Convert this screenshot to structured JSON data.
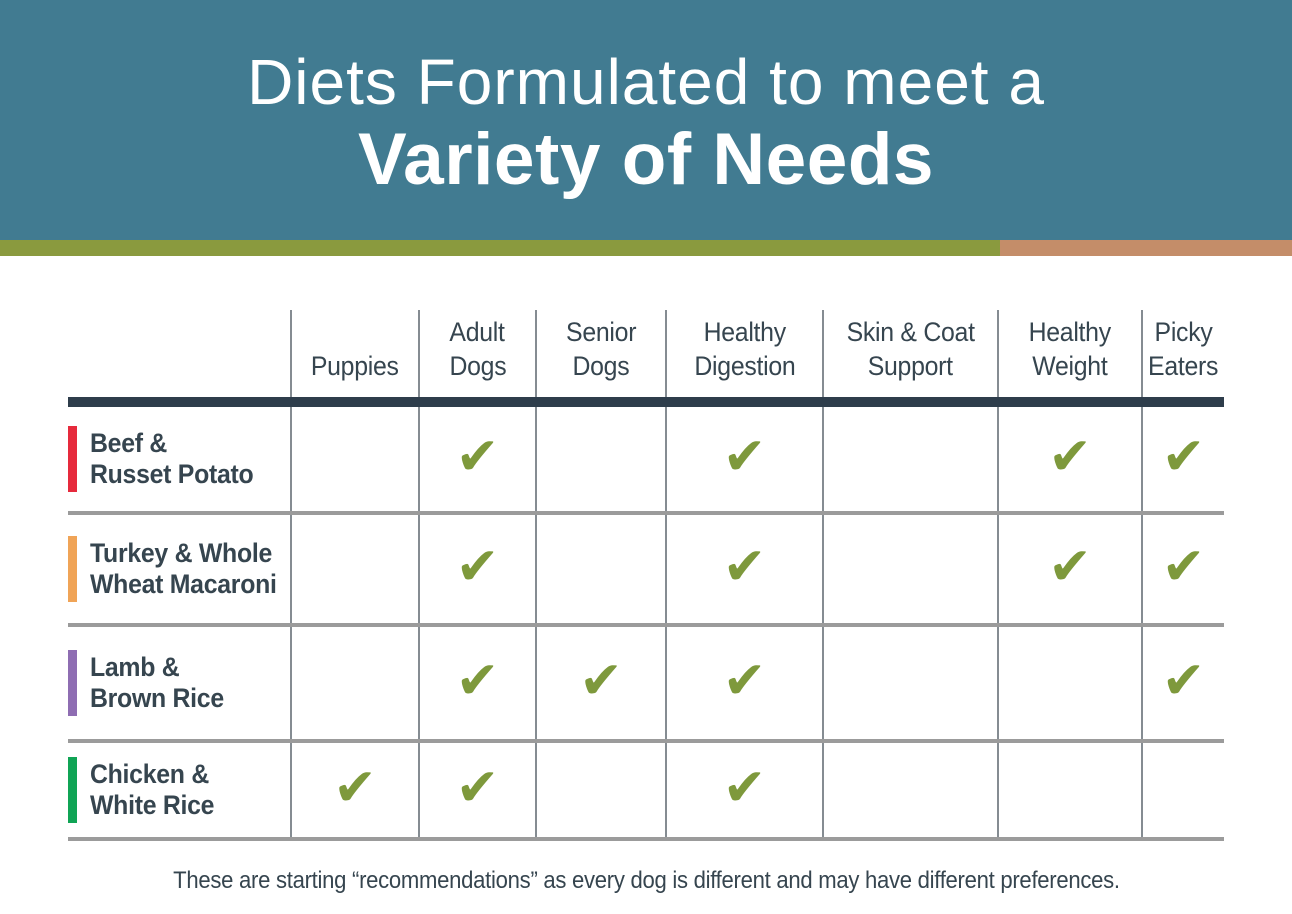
{
  "title": {
    "line1": "Diets Formulated to meet a",
    "line2": "Variety of Needs"
  },
  "colors": {
    "banner": "#417B91",
    "stripe_green": "#8A9A3E",
    "stripe_salmon": "#C48D69",
    "check": "#7E993C",
    "header_text": "#36454F",
    "dark_rule": "#2E3D4B",
    "row_separator": "#9B9B9B",
    "grid_line": "#858C92"
  },
  "icons": {
    "check": "✔"
  },
  "table": {
    "columns": [
      {
        "label": "Puppies",
        "lines": [
          "Puppies"
        ]
      },
      {
        "label": "Adult Dogs",
        "lines": [
          "Adult",
          "Dogs"
        ]
      },
      {
        "label": "Senior Dogs",
        "lines": [
          "Senior",
          "Dogs"
        ]
      },
      {
        "label": "Healthy Digestion",
        "lines": [
          "Healthy",
          "Digestion"
        ]
      },
      {
        "label": "Skin & Coat Support",
        "lines": [
          "Skin & Coat",
          "Support"
        ]
      },
      {
        "label": "Healthy Weight",
        "lines": [
          "Healthy",
          "Weight"
        ]
      },
      {
        "label": "Picky Eaters",
        "lines": [
          "Picky",
          "Eaters"
        ]
      }
    ],
    "rows": [
      {
        "label": "Beef & Russet Potato",
        "lines": [
          "Beef &",
          "Russet Potato"
        ],
        "bar_color": "#E62A3C",
        "checks": [
          false,
          true,
          false,
          true,
          false,
          true,
          true
        ]
      },
      {
        "label": "Turkey & Whole Wheat Macaroni",
        "lines": [
          "Turkey & Whole",
          "Wheat Macaroni"
        ],
        "bar_color": "#F0A457",
        "checks": [
          false,
          true,
          false,
          true,
          false,
          true,
          true
        ]
      },
      {
        "label": "Lamb & Brown Rice",
        "lines": [
          "Lamb &",
          "Brown Rice"
        ],
        "bar_color": "#8E6DB2",
        "checks": [
          false,
          true,
          true,
          true,
          false,
          false,
          true
        ]
      },
      {
        "label": "Chicken & White Rice",
        "lines": [
          "Chicken &",
          "White Rice"
        ],
        "bar_color": "#10A455",
        "checks": [
          true,
          true,
          false,
          true,
          false,
          false,
          false
        ]
      }
    ]
  },
  "footer": {
    "note": "These are starting “recommendations” as every dog is different and may have different preferences."
  },
  "chart_data": {
    "type": "table",
    "title": "Diets Formulated to meet a Variety of Needs",
    "columns": [
      "Puppies",
      "Adult Dogs",
      "Senior Dogs",
      "Healthy Digestion",
      "Skin & Coat Support",
      "Healthy Weight",
      "Picky Eaters"
    ],
    "rows": [
      "Beef & Russet Potato",
      "Turkey & Whole Wheat Macaroni",
      "Lamb & Brown Rice",
      "Chicken & White Rice"
    ],
    "matrix": [
      [
        0,
        1,
        0,
        1,
        0,
        1,
        1
      ],
      [
        0,
        1,
        0,
        1,
        0,
        1,
        1
      ],
      [
        0,
        1,
        1,
        1,
        0,
        0,
        1
      ],
      [
        1,
        1,
        0,
        1,
        0,
        0,
        0
      ]
    ],
    "legend": "1 = diet recommended for that need (olive checkmark)",
    "note": "These are starting “recommendations” as every dog is different and may have different preferences."
  }
}
